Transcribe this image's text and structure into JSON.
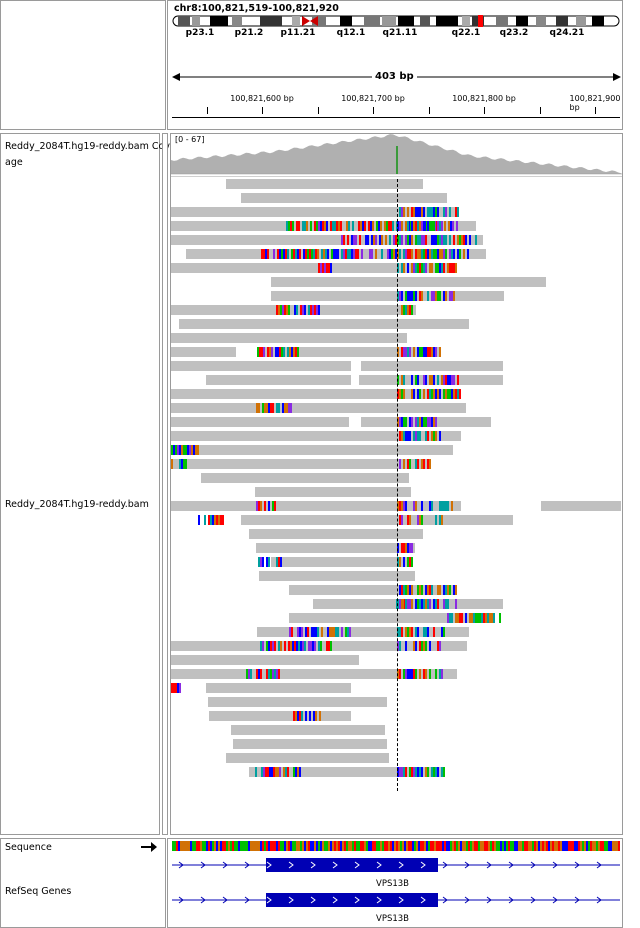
{
  "locus": "chr8:100,821,519-100,821,920",
  "ideogram_bands": [
    "p23.1",
    "p21.2",
    "p11.21",
    "q12.1",
    "q21.11",
    "q22.1",
    "q23.2",
    "q24.21"
  ],
  "ruler": {
    "span_label": "403 bp",
    "ticks": [
      "100,821,600 bp",
      "100,821,700 bp",
      "100,821,800 bp",
      "100,821,900 bp"
    ]
  },
  "tracks": {
    "coverage_label": "Reddy_2084T.hg19-reddy.bam Coverage",
    "coverage_label_line1": "Reddy_2084T.hg19-reddy.bam Cov",
    "coverage_label_line2": "age",
    "coverage_range": "[0 - 67]",
    "alignment_label": "Reddy_2084T.hg19-reddy.bam",
    "sequence_label": "Sequence",
    "refseq_label": "RefSeq Genes",
    "gene_name": "VPS13B"
  },
  "colors": {
    "read": "#c0c0c0",
    "coverage": "#b0b0b0",
    "gene": "#0000b4",
    "mismatch_a": "#00c000",
    "mismatch_c": "#0000ff",
    "mismatch_g": "#d17105",
    "mismatch_t": "#ff0000"
  },
  "icons": {
    "strand": "arrow-right-icon",
    "centromere": "centromere-icon",
    "chromosome_marker": "red-region-marker-icon"
  }
}
